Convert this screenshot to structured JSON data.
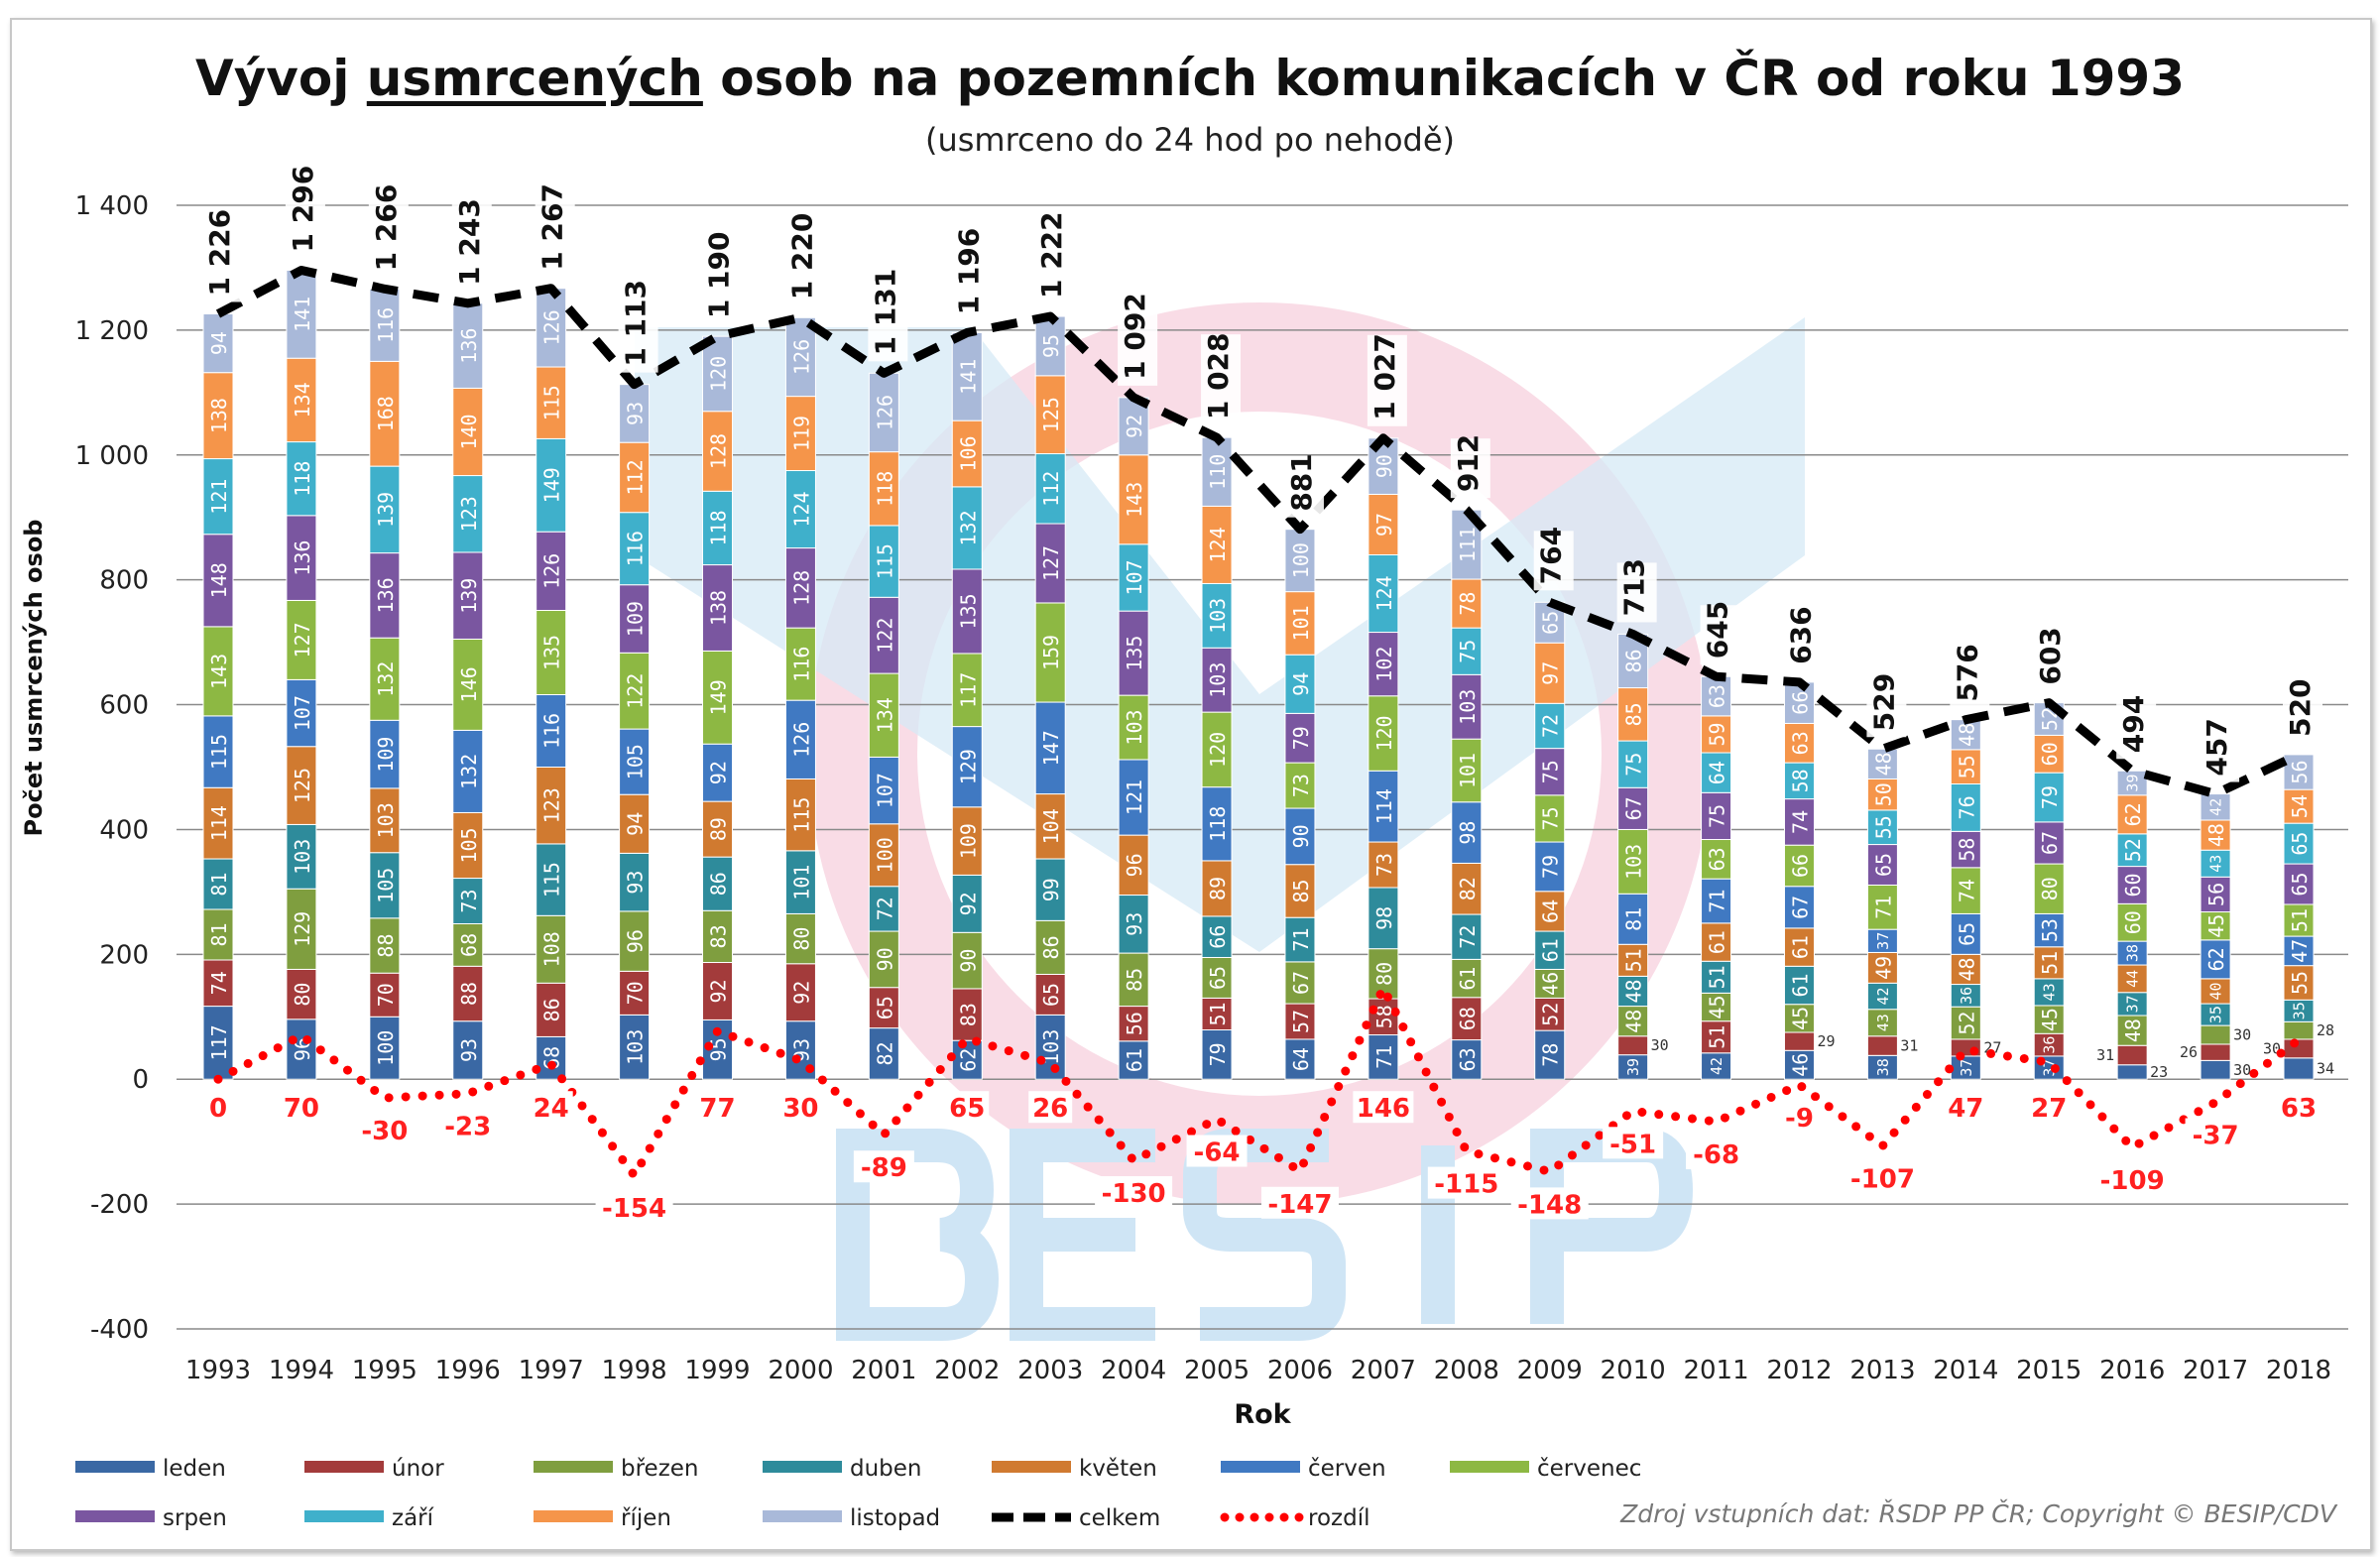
{
  "title": {
    "pre": "Vývoj ",
    "underlined": "usmrcených",
    "post": " osob na pozemních komunikacích v ČR od roku 1993"
  },
  "subtitle": "(usmrceno do 24 hod po nehodě)",
  "source": "Zdroj vstupních dat: ŘSDP PP ČR; Copyright © BESIP/CDV",
  "watermark": "BESIP",
  "chart_data": {
    "type": "bar",
    "stacked": true,
    "title": "Vývoj usmrcených osob na pozemních komunikacích v ČR od roku 1993",
    "subtitle": "(usmrceno do 24 hod po nehodě)",
    "xlabel": "Rok",
    "ylabel": "Počet usmrcených osob",
    "ylim": [
      -400,
      1400
    ],
    "yticks": [
      -400,
      -200,
      0,
      200,
      400,
      600,
      800,
      1000,
      1200,
      1400
    ],
    "ytick_labels": [
      "-400",
      "-200",
      "0",
      "200",
      "400",
      "600",
      "800",
      "1 000",
      "1 200",
      "1 400"
    ],
    "grid": true,
    "legend_position": "bottom",
    "categories": [
      "1993",
      "1994",
      "1995",
      "1996",
      "1997",
      "1998",
      "1999",
      "2000",
      "2001",
      "2002",
      "2003",
      "2004",
      "2005",
      "2006",
      "2007",
      "2008",
      "2009",
      "2010",
      "2011",
      "2012",
      "2013",
      "2014",
      "2015",
      "2016",
      "2017",
      "2018"
    ],
    "series": [
      {
        "name": "leden",
        "color": "#3a68a4",
        "values": [
          117,
          96,
          100,
          93,
          68,
          103,
          95,
          93,
          82,
          62,
          103,
          61,
          79,
          64,
          71,
          63,
          78,
          39,
          42,
          46,
          38,
          37,
          37,
          23,
          30,
          34
        ]
      },
      {
        "name": "únor",
        "color": "#a33b3b",
        "values": [
          74,
          80,
          70,
          88,
          86,
          70,
          92,
          92,
          65,
          83,
          65,
          56,
          51,
          57,
          58,
          68,
          52,
          30,
          51,
          29,
          31,
          27,
          36,
          31,
          26,
          30
        ]
      },
      {
        "name": "březen",
        "color": "#7f9e3f",
        "values": [
          81,
          129,
          88,
          68,
          108,
          96,
          83,
          80,
          90,
          90,
          86,
          85,
          65,
          67,
          80,
          61,
          46,
          48,
          45,
          45,
          43,
          52,
          45,
          48,
          30,
          28
        ]
      },
      {
        "name": "duben",
        "color": "#2e8b9b",
        "values": [
          81,
          103,
          105,
          73,
          115,
          93,
          86,
          101,
          72,
          92,
          99,
          93,
          66,
          71,
          98,
          72,
          61,
          48,
          51,
          61,
          42,
          36,
          43,
          37,
          35,
          35
        ]
      },
      {
        "name": "květen",
        "color": "#d07a30",
        "values": [
          114,
          125,
          103,
          105,
          123,
          94,
          89,
          115,
          100,
          109,
          104,
          96,
          89,
          85,
          73,
          82,
          64,
          51,
          61,
          61,
          49,
          48,
          51,
          44,
          40,
          55
        ]
      },
      {
        "name": "červen",
        "color": "#4079c2",
        "values": [
          115,
          107,
          109,
          132,
          116,
          105,
          92,
          126,
          107,
          129,
          147,
          121,
          118,
          90,
          114,
          98,
          79,
          81,
          71,
          67,
          37,
          65,
          53,
          38,
          62,
          47
        ]
      },
      {
        "name": "červenec",
        "color": "#8db843",
        "values": [
          143,
          127,
          132,
          146,
          135,
          122,
          149,
          116,
          134,
          117,
          159,
          103,
          120,
          73,
          120,
          101,
          75,
          103,
          63,
          66,
          71,
          74,
          80,
          60,
          45,
          51
        ]
      },
      {
        "name": "srpen",
        "color": "#7a56a0",
        "values": [
          148,
          136,
          136,
          139,
          126,
          109,
          138,
          128,
          122,
          135,
          127,
          135,
          103,
          79,
          102,
          103,
          75,
          67,
          75,
          74,
          65,
          58,
          67,
          60,
          56,
          65
        ]
      },
      {
        "name": "září",
        "color": "#3fb0cb",
        "values": [
          121,
          118,
          139,
          123,
          149,
          116,
          118,
          124,
          115,
          132,
          112,
          107,
          103,
          94,
          124,
          75,
          72,
          75,
          64,
          58,
          55,
          76,
          79,
          52,
          43,
          65
        ]
      },
      {
        "name": "říjen",
        "color": "#f5954a",
        "values": [
          138,
          134,
          168,
          140,
          115,
          112,
          128,
          119,
          118,
          106,
          125,
          143,
          124,
          101,
          97,
          78,
          97,
          85,
          59,
          63,
          50,
          55,
          60,
          62,
          48,
          54
        ]
      },
      {
        "name": "listopad",
        "color": "#a9b9d9",
        "values": [
          94,
          141,
          116,
          136,
          126,
          93,
          120,
          126,
          126,
          141,
          95,
          92,
          110,
          100,
          90,
          111,
          65,
          86,
          63,
          66,
          48,
          48,
          52,
          39,
          42,
          56
        ]
      }
    ],
    "lines": [
      {
        "name": "celkem",
        "style": "dashed",
        "color": "#000000",
        "values": [
          1226,
          1296,
          1266,
          1243,
          1267,
          1113,
          1190,
          1220,
          1131,
          1196,
          1222,
          1092,
          1028,
          881,
          1027,
          912,
          764,
          713,
          645,
          636,
          529,
          576,
          603,
          494,
          457,
          520
        ],
        "labels": [
          "1 226",
          "1 296",
          "1 266",
          "1 243",
          "1 267",
          "1 113",
          "1 190",
          "1 220",
          "1 131",
          "1 196",
          "1 222",
          "1 092",
          "1 028",
          "881",
          "1 027",
          "912",
          "764",
          "713",
          "645",
          "636",
          "529",
          "576",
          "603",
          "494",
          "457",
          "520"
        ]
      },
      {
        "name": "rozdíl",
        "style": "dotted",
        "color": "#ff0000",
        "values": [
          0,
          70,
          -30,
          -23,
          24,
          -154,
          77,
          30,
          -89,
          65,
          26,
          -130,
          -64,
          -147,
          146,
          -115,
          -148,
          -51,
          -68,
          -9,
          -107,
          47,
          27,
          -109,
          -37,
          63
        ]
      }
    ]
  }
}
